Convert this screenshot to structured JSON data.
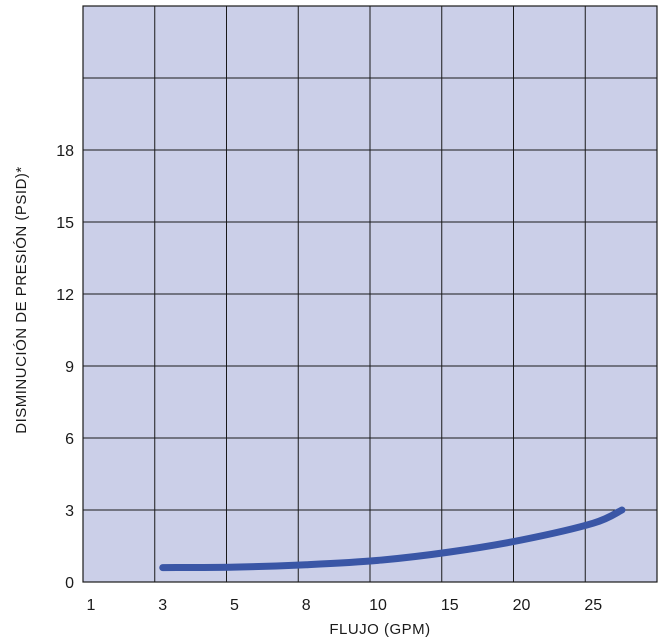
{
  "chart_data": {
    "type": "line",
    "title": "",
    "xlabel": "FLUJO (GPM)",
    "ylabel": "DISMINUCIÓN DE PRESIÓN (PSID)*",
    "x_categories": [
      "1",
      "3",
      "5",
      "8",
      "10",
      "15",
      "20",
      "25"
    ],
    "y_ticks": [
      0,
      3,
      6,
      9,
      12,
      15,
      18
    ],
    "ylim": [
      0,
      24
    ],
    "grid": true,
    "colors": {
      "plot_background": "#cbcfe8",
      "grid": "#1a1a1a",
      "line": "#3a56a6"
    },
    "series": [
      {
        "name": "",
        "x": [
          "3",
          "5",
          "8",
          "10",
          "15",
          "20",
          "25",
          "27"
        ],
        "y": [
          0.6,
          0.62,
          0.72,
          0.9,
          1.25,
          1.75,
          2.45,
          3.0
        ]
      }
    ]
  }
}
